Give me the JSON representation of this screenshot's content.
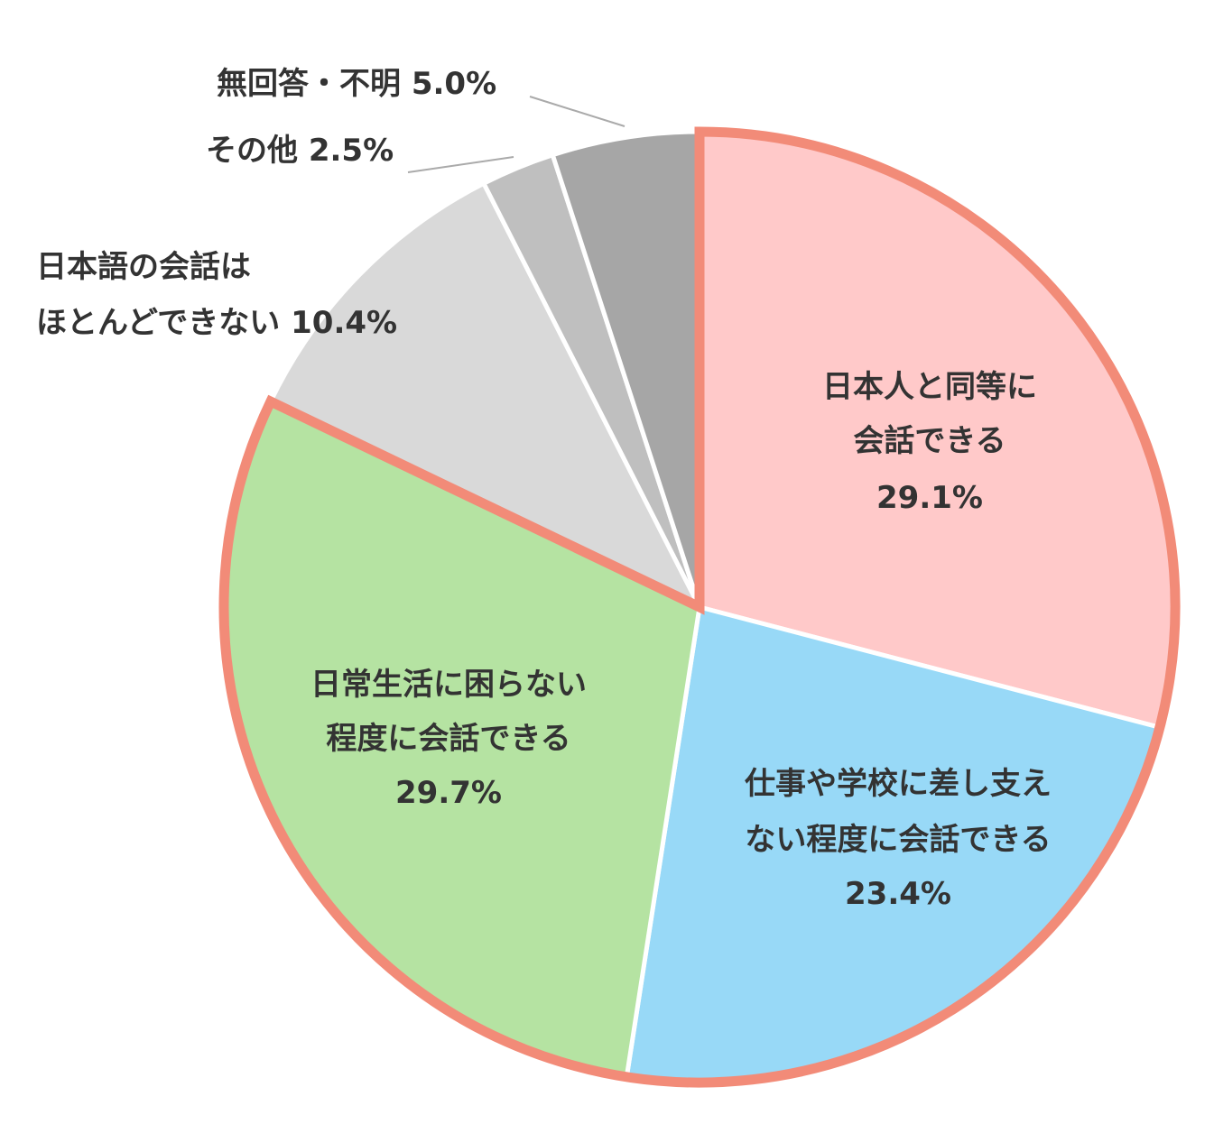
{
  "chart_data": {
    "type": "pie",
    "title": "",
    "start_angle_deg": 0,
    "direction": "clockwise",
    "slices": [
      {
        "name": "日本人と同等に会話できる",
        "lines": [
          "日本人と同等に",
          "会話できる"
        ],
        "value_label": "29.1%",
        "value": 29.1,
        "color": "#FFC9C9",
        "highlight": true
      },
      {
        "name": "仕事や学校に差し支えない程度に会話できる",
        "lines": [
          "仕事や学校に差し支え",
          "ない程度に会話できる"
        ],
        "value_label": "23.4%",
        "value": 23.4,
        "color": "#98D9F7",
        "highlight": true
      },
      {
        "name": "日常生活に困らない程度に会話できる",
        "lines": [
          "日常生活に困らない",
          "程度に会話できる"
        ],
        "value_label": "29.7%",
        "value": 29.7,
        "color": "#B5E3A2",
        "highlight": true
      },
      {
        "name": "日本語の会話はほとんどできない",
        "lines": [
          "日本語の会話は",
          "ほとんどできない 10.4%"
        ],
        "value_label": "10.4%",
        "value": 10.4,
        "color": "#D9D9D9",
        "highlight": false
      },
      {
        "name": "その他",
        "lines": [
          "その他 2.5%"
        ],
        "value_label": "2.5%",
        "value": 2.5,
        "color": "#BFBFBF",
        "highlight": false
      },
      {
        "name": "無回答・不明",
        "lines": [
          "無回答・不明 5.0%"
        ],
        "value_label": "5.0%",
        "value": 5.0,
        "color": "#A6A6A6",
        "highlight": false
      }
    ],
    "highlight_color": "#F28B78",
    "separator_color": "#FFFFFF",
    "text_color": "#333333",
    "leader_color": "#AAAAAA"
  }
}
